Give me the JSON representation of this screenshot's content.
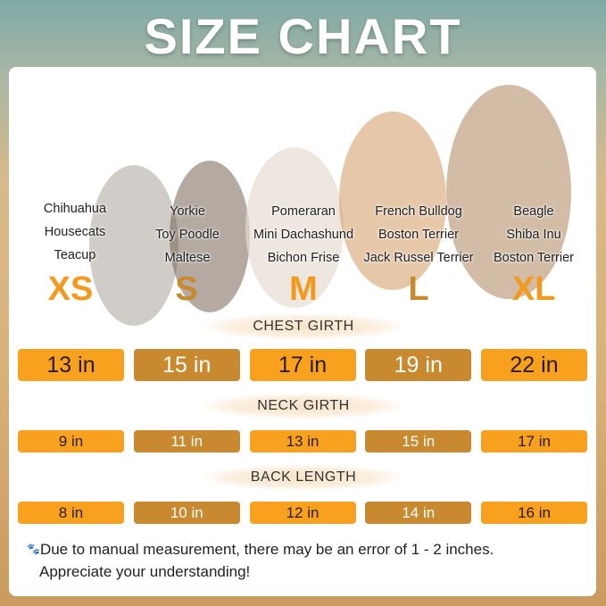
{
  "title": "SIZE CHART",
  "sizes": [
    {
      "label": "XS",
      "color": "#f39a1e",
      "breeds": [
        "Chihuahua",
        "Housecats",
        "Teacup"
      ]
    },
    {
      "label": "S",
      "color": "#c78a30",
      "breeds": [
        "Yorkie",
        "Toy Poodle",
        "Maltese"
      ]
    },
    {
      "label": "M",
      "color": "#f39a1e",
      "breeds": [
        "Pomeraran",
        "Mini Dachashund",
        "Bichon Frise"
      ]
    },
    {
      "label": "L",
      "color": "#c78a30",
      "breeds": [
        "French Bulldog",
        "Boston Terrier",
        "Jack Russel Terrier"
      ]
    },
    {
      "label": "XL",
      "color": "#f39a1e",
      "breeds": [
        "Beagle",
        "Shiba Inu",
        "Boston Terrier"
      ]
    }
  ],
  "chest": {
    "label": "CHEST GIRTH",
    "values": [
      "13 in",
      "15 in",
      "17 in",
      "19 in",
      "22 in"
    ]
  },
  "neck": {
    "label": "NECK GIRTH",
    "values": [
      "9 in",
      "11 in",
      "13 in",
      "15 in",
      "17 in"
    ]
  },
  "back": {
    "label": "BACK LENGTH",
    "values": [
      "8 in",
      "10 in",
      "12 in",
      "14 in",
      "16 in"
    ]
  },
  "note": {
    "icon": "paw-icon",
    "line1": "Due to manual measurement, there may be an error of 1 - 2 inches.",
    "line2": "Appreciate your understanding!"
  }
}
